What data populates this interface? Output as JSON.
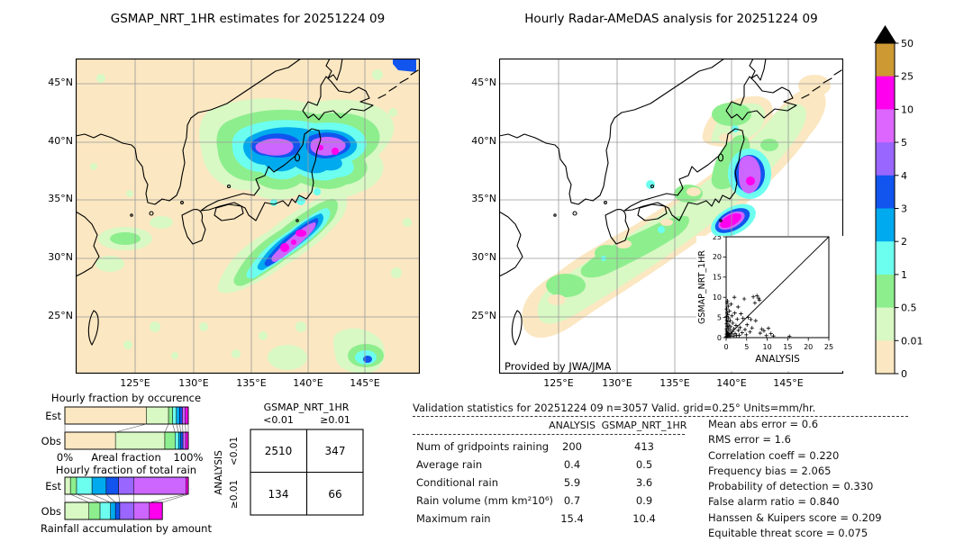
{
  "maps": {
    "left": {
      "title": "GSMAP_NRT_1HR estimates for 20251224 09"
    },
    "right": {
      "title": "Hourly Radar-AMeDAS analysis for 20251224 09",
      "credit": "Provided by JWA/JMA"
    },
    "lat_ticks": [
      "45°N",
      "40°N",
      "35°N",
      "30°N",
      "25°N"
    ],
    "lon_ticks": [
      "125°E",
      "130°E",
      "135°E",
      "140°E",
      "145°E"
    ]
  },
  "colorbar": {
    "tick_labels": [
      "50",
      "25",
      "10",
      "5",
      "4",
      "3",
      "2",
      "1",
      "0.5",
      "0.01",
      "0"
    ],
    "segment_colors_top_to_bottom": [
      "#cc9933",
      "#ff00ee",
      "#dd66ff",
      "#9966ff",
      "#1155ee",
      "#00aaee",
      "#6cfff0",
      "#8dee8d",
      "#d8f8c4",
      "#fbe7c1"
    ],
    "overflow_marker_color": "#000000"
  },
  "chart_data": [
    {
      "id": "occurrence_fractions",
      "type": "bar",
      "stacked": true,
      "orientation": "horizontal",
      "title": "Hourly fraction by occurence",
      "categories": [
        "Est",
        "Obs"
      ],
      "xlabel": "Areal fraction",
      "xtick_labels": [
        "0%",
        "100%"
      ],
      "xlim": [
        0,
        1
      ],
      "bin_colors": [
        "#fbe7c1",
        "#d8f8c4",
        "#8dee8d",
        "#6cfff0",
        "#00aaee",
        "#1155ee",
        "#cc66ff",
        "#ff00ee"
      ],
      "series": [
        {
          "name": "Est",
          "fractions": [
            0.66,
            0.18,
            0.033,
            0.03,
            0.027,
            0.022,
            0.024,
            0.024
          ]
        },
        {
          "name": "Obs",
          "fractions": [
            0.41,
            0.4,
            0.083,
            0.028,
            0.018,
            0.018,
            0.022,
            0.021
          ]
        }
      ]
    },
    {
      "id": "total_rain_fractions",
      "type": "bar",
      "stacked": true,
      "orientation": "horizontal",
      "title": "Hourly fraction of total rain",
      "footer": "Rainfall accumulation by amount",
      "categories": [
        "Est",
        "Obs"
      ],
      "xlim": [
        0,
        1
      ],
      "bin_colors": [
        "#d8f8c4",
        "#8dee8d",
        "#6cfff0",
        "#00aaee",
        "#1155ee",
        "#9966ff",
        "#cc66ff",
        "#ff00ee"
      ],
      "series": [
        {
          "name": "Est",
          "fractions": [
            0.045,
            0.05,
            0.125,
            0.115,
            0.1,
            0.125,
            0.42,
            0.02
          ]
        },
        {
          "name": "Obs",
          "fractions": [
            0.195,
            0.09,
            0.085,
            0.04,
            0.035,
            0.115,
            0.125,
            0.105
          ]
        }
      ]
    },
    {
      "id": "contingency_table",
      "type": "table",
      "col_group": "GSMAP_NRT_1HR",
      "row_group": "ANALYSIS",
      "col_labels": [
        "<0.01",
        "≥0.01"
      ],
      "row_labels": [
        "<0.01",
        "≥0.01"
      ],
      "values": [
        [
          "2510",
          "347"
        ],
        [
          "134",
          "66"
        ]
      ]
    },
    {
      "id": "validation_stats",
      "type": "table",
      "title": "Validation statistics for 20251224 09  n=3057 Valid. grid=0.25° Units=mm/hr.",
      "columns": [
        "ANALYSIS",
        "GSMAP_NRT_1HR"
      ],
      "rows": [
        {
          "label": "Num of gridpoints raining",
          "values": [
            "200",
            "413"
          ]
        },
        {
          "label": "Average rain",
          "values": [
            "0.4",
            "0.5"
          ]
        },
        {
          "label": "Conditional rain",
          "values": [
            "5.9",
            "3.6"
          ]
        },
        {
          "label": "Rain volume (mm km²10⁶)",
          "values": [
            "0.7",
            "0.9"
          ]
        },
        {
          "label": "Maximum rain",
          "values": [
            "15.4",
            "10.4"
          ]
        }
      ]
    },
    {
      "id": "skill_scores",
      "type": "table",
      "rows": [
        {
          "label": "Mean abs error",
          "value": "0.6"
        },
        {
          "label": "RMS error",
          "value": "1.6"
        },
        {
          "label": "Correlation coeff",
          "value": "0.220"
        },
        {
          "label": "Frequency bias",
          "value": "2.065"
        },
        {
          "label": "Probability of detection",
          "value": "0.330"
        },
        {
          "label": "False alarm ratio",
          "value": "0.840"
        },
        {
          "label": "Hanssen & Kuipers score",
          "value": "0.209"
        },
        {
          "label": "Equitable threat score",
          "value": "0.075"
        }
      ]
    },
    {
      "id": "scatter_inset",
      "type": "scatter",
      "xlabel": "ANALYSIS",
      "ylabel": "GSMAP_NRT_1HR",
      "xlim": [
        0,
        25
      ],
      "ylim": [
        0,
        25
      ],
      "tick_values": [
        0,
        5,
        10,
        15,
        20,
        25
      ],
      "diagonal": true,
      "marker": "+",
      "points": [
        [
          0.05,
          0.2
        ],
        [
          0.1,
          0.9
        ],
        [
          0.1,
          2.1
        ],
        [
          0.1,
          3.4
        ],
        [
          0.15,
          5.2
        ],
        [
          0.15,
          7.1
        ],
        [
          0.2,
          0.4
        ],
        [
          0.2,
          1.6
        ],
        [
          0.2,
          4.3
        ],
        [
          0.25,
          6.2
        ],
        [
          0.25,
          8.6
        ],
        [
          0.3,
          0.8
        ],
        [
          0.3,
          2.8
        ],
        [
          0.3,
          9.1
        ],
        [
          0.35,
          1.2
        ],
        [
          0.4,
          3.9
        ],
        [
          0.4,
          5.7
        ],
        [
          0.45,
          0.3
        ],
        [
          0.5,
          2.4
        ],
        [
          0.5,
          7.8
        ],
        [
          0.6,
          1.1
        ],
        [
          0.6,
          4.9
        ],
        [
          0.7,
          0.5
        ],
        [
          0.7,
          3.1
        ],
        [
          0.8,
          6.6
        ],
        [
          0.9,
          1.9
        ],
        [
          1.0,
          0.3
        ],
        [
          1.0,
          4.2
        ],
        [
          1.1,
          2.7
        ],
        [
          1.2,
          8.3
        ],
        [
          1.3,
          0.9
        ],
        [
          1.4,
          5.4
        ],
        [
          1.5,
          1.5
        ],
        [
          1.6,
          3.6
        ],
        [
          1.8,
          0.4
        ],
        [
          1.9,
          2.2
        ],
        [
          2.0,
          10.0
        ],
        [
          2.1,
          6.1
        ],
        [
          2.2,
          1.0
        ],
        [
          2.4,
          3.0
        ],
        [
          2.5,
          0.5
        ],
        [
          2.7,
          4.6
        ],
        [
          2.9,
          7.6
        ],
        [
          3.0,
          1.8
        ],
        [
          3.2,
          0.6
        ],
        [
          3.4,
          2.5
        ],
        [
          3.6,
          5.9
        ],
        [
          3.9,
          1.2
        ],
        [
          4.1,
          4.8
        ],
        [
          4.4,
          9.6
        ],
        [
          4.6,
          2.0
        ],
        [
          4.9,
          0.7
        ],
        [
          5.1,
          3.2
        ],
        [
          5.4,
          5.0
        ],
        [
          5.8,
          1.4
        ],
        [
          6.0,
          4.5
        ],
        [
          6.3,
          2.4
        ],
        [
          6.6,
          10.1
        ],
        [
          7.0,
          8.6
        ],
        [
          7.2,
          4.2
        ],
        [
          7.5,
          10.4
        ],
        [
          7.9,
          9.8
        ],
        [
          8.1,
          9.3
        ],
        [
          8.3,
          1.1
        ],
        [
          8.7,
          2.1
        ],
        [
          9.2,
          1.7
        ],
        [
          9.8,
          0.5
        ],
        [
          10.3,
          2.3
        ],
        [
          10.9,
          1.0
        ],
        [
          11.5,
          0.4
        ],
        [
          15.4,
          0.3
        ]
      ]
    }
  ]
}
